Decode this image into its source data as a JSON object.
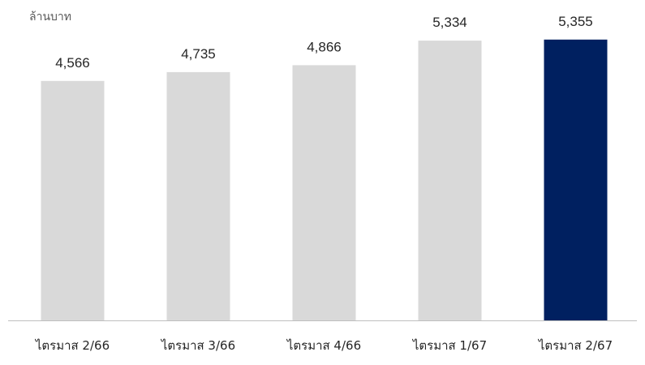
{
  "chart_data": {
    "type": "bar",
    "unit_label": "ล้านบาท",
    "categories": [
      "ไตรมาส 2/66",
      "ไตรมาส 3/66",
      "ไตรมาส 4/66",
      "ไตรมาส 1/67",
      "ไตรมาส 2/67"
    ],
    "values": [
      4566,
      4735,
      4866,
      5334,
      5355
    ],
    "value_labels": [
      "4,566",
      "4,735",
      "4,866",
      "5,334",
      "5,355"
    ],
    "highlight_index": 4,
    "ylim": [
      0,
      5800
    ],
    "grid": false,
    "legend": "none",
    "colors": {
      "bar": "#d9d9d9",
      "highlight": "#002060",
      "axis": "#bfbfbf"
    }
  }
}
